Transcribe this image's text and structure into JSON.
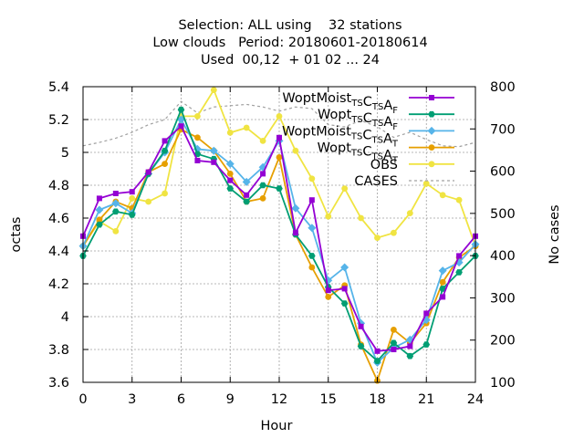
{
  "chart_data": {
    "type": "line",
    "title_lines": [
      "Selection: ALL using    32 stations",
      "Low clouds   Period: 20180601-20180614",
      "Used  00,12  + 01 02 ... 24"
    ],
    "xlabel": "Hour",
    "ylabel": "octas",
    "y2label": "No cases",
    "xlim": [
      0,
      24
    ],
    "ylim": [
      3.6,
      5.4
    ],
    "y2lim": [
      100,
      800
    ],
    "xticks": [
      "0",
      "3",
      "6",
      "9",
      "12",
      "15",
      "18",
      "21",
      "24"
    ],
    "yticks": [
      "3.6",
      "3.8",
      "4",
      "4.2",
      "4.4",
      "4.6",
      "4.8",
      "5",
      "5.2",
      "5.4"
    ],
    "y2ticks": [
      "100",
      "200",
      "300",
      "400",
      "500",
      "600",
      "700",
      "800"
    ],
    "grid": true,
    "legend_position": "top-right",
    "x": [
      0,
      1,
      2,
      3,
      4,
      5,
      6,
      7,
      8,
      9,
      10,
      11,
      12,
      13,
      14,
      15,
      16,
      17,
      18,
      19,
      20,
      21,
      22,
      23,
      24
    ],
    "series": [
      {
        "name": "WoptMoist",
        "sub": "TS",
        "mid": "C",
        "sub2": "TS",
        "mid2": "A",
        "sub3": "F",
        "color": "#9400d3",
        "marker": "square",
        "axis": "y",
        "values": [
          4.49,
          4.72,
          4.75,
          4.76,
          4.88,
          5.07,
          5.16,
          4.95,
          4.94,
          4.83,
          4.74,
          4.87,
          5.09,
          4.51,
          4.71,
          4.16,
          4.17,
          3.94,
          3.79,
          3.8,
          3.82,
          4.02,
          4.12,
          4.37,
          4.49
        ]
      },
      {
        "name": "Wopt",
        "sub": "TS",
        "mid": "C",
        "sub2": "TS",
        "mid2": "A",
        "sub3": "F",
        "color": "#009e73",
        "marker": "hexagon",
        "axis": "y",
        "values": [
          4.37,
          4.56,
          4.64,
          4.62,
          4.87,
          5.01,
          5.26,
          4.99,
          4.96,
          4.78,
          4.7,
          4.8,
          4.78,
          4.5,
          4.37,
          4.18,
          4.08,
          3.82,
          3.73,
          3.84,
          3.76,
          3.83,
          4.17,
          4.27,
          4.37
        ]
      },
      {
        "name": "WoptMoist",
        "sub": "TS",
        "mid": "C",
        "sub2": "TS",
        "mid2": "A",
        "sub3": "T",
        "color": "#56b4e9",
        "marker": "diamond",
        "axis": "y",
        "values": [
          4.43,
          4.65,
          4.69,
          4.63,
          4.87,
          5.0,
          5.2,
          5.02,
          5.01,
          4.93,
          4.82,
          4.91,
          5.07,
          4.66,
          4.54,
          4.22,
          4.3,
          3.96,
          3.72,
          3.81,
          3.86,
          3.98,
          4.28,
          4.33,
          4.44
        ]
      },
      {
        "name": "Wopt",
        "sub": "TS",
        "mid": "C",
        "sub2": "TS",
        "mid2": "A",
        "sub3": "T",
        "color": "#e69f00",
        "marker": "circle",
        "axis": "y",
        "values": [
          4.43,
          4.59,
          4.7,
          4.66,
          4.88,
          4.93,
          5.14,
          5.09,
          5.01,
          4.87,
          4.7,
          4.72,
          4.97,
          4.5,
          4.3,
          4.12,
          4.19,
          3.83,
          3.61,
          3.92,
          3.84,
          3.96,
          4.21,
          4.36,
          4.43
        ]
      },
      {
        "name": "OBS",
        "color": "#f0e442",
        "marker": "circle",
        "axis": "y",
        "values": [
          4.43,
          4.58,
          4.52,
          4.72,
          4.7,
          4.75,
          5.22,
          5.22,
          5.38,
          5.12,
          5.15,
          5.07,
          5.22,
          5.01,
          4.84,
          4.61,
          4.78,
          4.6,
          4.48,
          4.51,
          4.63,
          4.81,
          4.74,
          4.71,
          4.43
        ]
      },
      {
        "name": "CASES",
        "color": "#a0a0a0",
        "marker": "none",
        "dash": true,
        "axis": "y2",
        "values": [
          660,
          668,
          678,
          692,
          710,
          722,
          765,
          738,
          752,
          755,
          758,
          752,
          742,
          752,
          748,
          710,
          705,
          720,
          705,
          680,
          692,
          675,
          660,
          658,
          668
        ]
      }
    ]
  }
}
